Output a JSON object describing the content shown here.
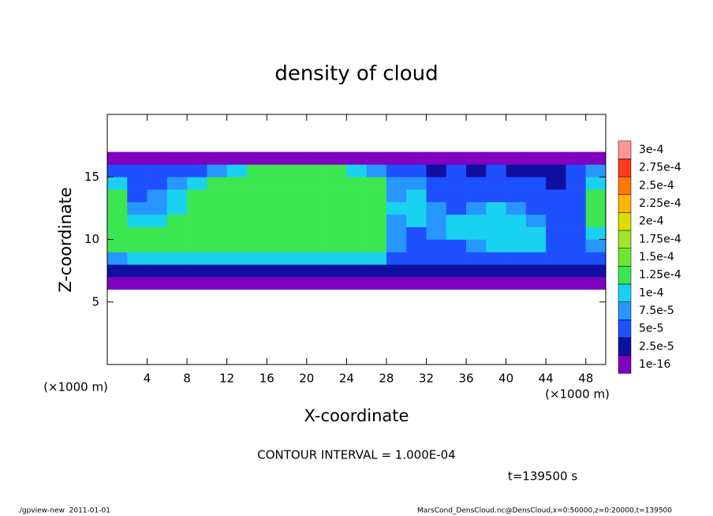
{
  "chart_data": {
    "type": "heatmap",
    "title": "density of cloud",
    "x_label": "X-coordinate",
    "y_label": "Z-coordinate",
    "x_unit": "(×1000 m)",
    "y_unit": "(×1000 m)",
    "contour_interval": "CONTOUR INTERVAL = 1.000E-04",
    "time": "t=139500 s",
    "footer_left": "./gpview-new  2011-01-01",
    "footer_right": "MarsCond_DensCloud.nc@DensCloud,x=0:50000,z=0:20000,t=139500",
    "xlim": [
      0,
      50
    ],
    "ylim": [
      0,
      20
    ],
    "xticks": [
      4,
      8,
      12,
      16,
      20,
      24,
      28,
      32,
      36,
      40,
      44,
      48
    ],
    "yticks": [
      5,
      10,
      15
    ],
    "x": [
      0,
      2,
      4,
      6,
      8,
      10,
      12,
      14,
      16,
      18,
      20,
      22,
      24,
      26,
      28,
      30,
      32,
      34,
      36,
      38,
      40,
      42,
      44,
      46,
      48,
      50
    ],
    "y": [
      6,
      7,
      8,
      9,
      10,
      11,
      12,
      13,
      14,
      15,
      16,
      17
    ],
    "levels": [
      1e-16,
      {
        "value": 2.5e-05,
        "label": "2.5e-5"
      },
      {
        "value": 5e-05,
        "label": "5e-5"
      },
      {
        "value": 7.5e-05,
        "label": "7.5e-5"
      },
      {
        "value": 0.0001,
        "label": "1e-4"
      },
      {
        "value": 0.000125,
        "label": "1.25e-4"
      },
      {
        "value": 0.00015,
        "label": "1.5e-4"
      },
      {
        "value": 0.000175,
        "label": "1.75e-4"
      },
      {
        "value": 0.0002,
        "label": "2e-4"
      },
      {
        "value": 0.000225,
        "label": "2.25e-4"
      },
      {
        "value": 0.00025,
        "label": "2.5e-4"
      },
      {
        "value": 0.000275,
        "label": "2.75e-4"
      },
      {
        "value": 0.0003,
        "label": "3e-4"
      }
    ],
    "colors": [
      "#8000c0",
      "#1010a0",
      "#1e50ff",
      "#2896ff",
      "#19d2f0",
      "#3ce650",
      "#6ee632",
      "#a0e628",
      "#dcdc00",
      "#ffb400",
      "#ff7800",
      "#ff3c1e",
      "#ff9696"
    ],
    "values": [
      [
        1e-05,
        1e-05,
        1e-05,
        1e-05,
        1e-05,
        1e-05,
        1e-05,
        1e-05,
        1e-05,
        1e-05,
        1e-05,
        1e-05,
        1e-05,
        1e-05,
        1e-05,
        1e-05,
        1e-05,
        1e-05,
        1e-05,
        1e-05,
        1e-05,
        1e-05,
        1e-05,
        1e-05,
        1e-05
      ],
      [
        4e-05,
        4e-05,
        4e-05,
        4e-05,
        4e-05,
        4e-05,
        4e-05,
        4e-05,
        4e-05,
        4e-05,
        4e-05,
        4e-05,
        4e-05,
        4e-05,
        4e-05,
        4e-05,
        3e-05,
        3e-05,
        3e-05,
        3e-05,
        3e-05,
        3e-05,
        3e-05,
        3e-05,
        3e-05
      ],
      [
        9e-05,
        0.00011,
        0.00011,
        0.00011,
        0.00011,
        0.00011,
        0.00011,
        0.00011,
        0.00011,
        0.00011,
        0.00011,
        0.00011,
        0.00011,
        0.00011,
        6e-05,
        6e-05,
        5e-05,
        5e-05,
        5e-05,
        5e-05,
        5e-05,
        5e-05,
        5e-05,
        5e-05,
        5e-05
      ],
      [
        0.00013,
        0.000135,
        0.000135,
        0.000135,
        0.000135,
        0.000135,
        0.000135,
        0.000135,
        0.000135,
        0.000135,
        0.000135,
        0.000135,
        0.000135,
        0.000135,
        9e-05,
        6e-05,
        7e-05,
        6e-05,
        8e-05,
        0.00011,
        0.00011,
        0.000105,
        6e-05,
        5e-05,
        8e-05
      ],
      [
        0.000135,
        0.00014,
        0.00014,
        0.00014,
        0.00014,
        0.00014,
        0.00014,
        0.00014,
        0.00014,
        0.00014,
        0.00014,
        0.00014,
        0.00014,
        0.00014,
        9e-05,
        7e-05,
        9e-05,
        0.000105,
        0.00011,
        0.000115,
        0.000115,
        0.00011,
        6e-05,
        5e-05,
        0.00012
      ],
      [
        0.000135,
        0.00012,
        0.00011,
        0.000145,
        0.000145,
        0.000145,
        0.000145,
        0.000145,
        0.000145,
        0.000145,
        0.000145,
        0.000145,
        0.000145,
        0.000145,
        9e-05,
        0.000105,
        8e-05,
        0.000105,
        0.00011,
        0.0001,
        0.000115,
        9e-05,
        6e-05,
        5e-05,
        0.00013
      ],
      [
        0.00013,
        9e-05,
        8e-05,
        0.00012,
        0.000145,
        0.000145,
        0.000145,
        0.000145,
        0.000145,
        0.000145,
        0.000145,
        0.000145,
        0.000145,
        0.000145,
        0.0001,
        0.00011,
        8e-05,
        7e-05,
        8e-05,
        0.000105,
        8e-05,
        6e-05,
        5e-05,
        6e-05,
        0.00013
      ],
      [
        0.00013,
        7e-05,
        8e-05,
        0.00011,
        0.000145,
        0.000145,
        0.000145,
        0.000145,
        0.000145,
        0.000145,
        0.000145,
        0.000145,
        0.000145,
        0.000145,
        9e-05,
        0.000105,
        7e-05,
        6e-05,
        7e-05,
        6e-05,
        5e-05,
        6e-05,
        5e-05,
        7e-05,
        0.00013
      ],
      [
        0.00012,
        6e-05,
        7e-05,
        9e-05,
        0.00012,
        0.00014,
        0.00014,
        0.00014,
        0.00014,
        0.00014,
        0.00014,
        0.00014,
        0.00014,
        0.00014,
        8e-05,
        8e-05,
        6e-05,
        5e-05,
        7e-05,
        5e-05,
        6e-05,
        5e-05,
        4e-05,
        7e-05,
        0.00012
      ],
      [
        6e-05,
        5e-05,
        6e-05,
        6e-05,
        7e-05,
        9e-05,
        0.00012,
        0.000135,
        0.000135,
        0.000135,
        0.000135,
        0.000135,
        0.00012,
        9e-05,
        6e-05,
        5e-05,
        4e-05,
        5e-05,
        3e-05,
        5e-05,
        4e-05,
        3e-05,
        4e-05,
        5e-05,
        8e-05
      ],
      [
        1.5e-05,
        1.5e-05,
        2e-05,
        1.5e-05,
        1.5e-05,
        1.5e-05,
        1.5e-05,
        2e-05,
        2e-05,
        1.5e-05,
        1.5e-05,
        1.5e-05,
        1.5e-05,
        1.5e-05,
        1.5e-05,
        2e-05,
        1.5e-05,
        1.5e-05,
        2e-05,
        1.5e-05,
        1.5e-05,
        2e-05,
        1.5e-05,
        1.5e-05,
        1.5e-05
      ]
    ]
  }
}
